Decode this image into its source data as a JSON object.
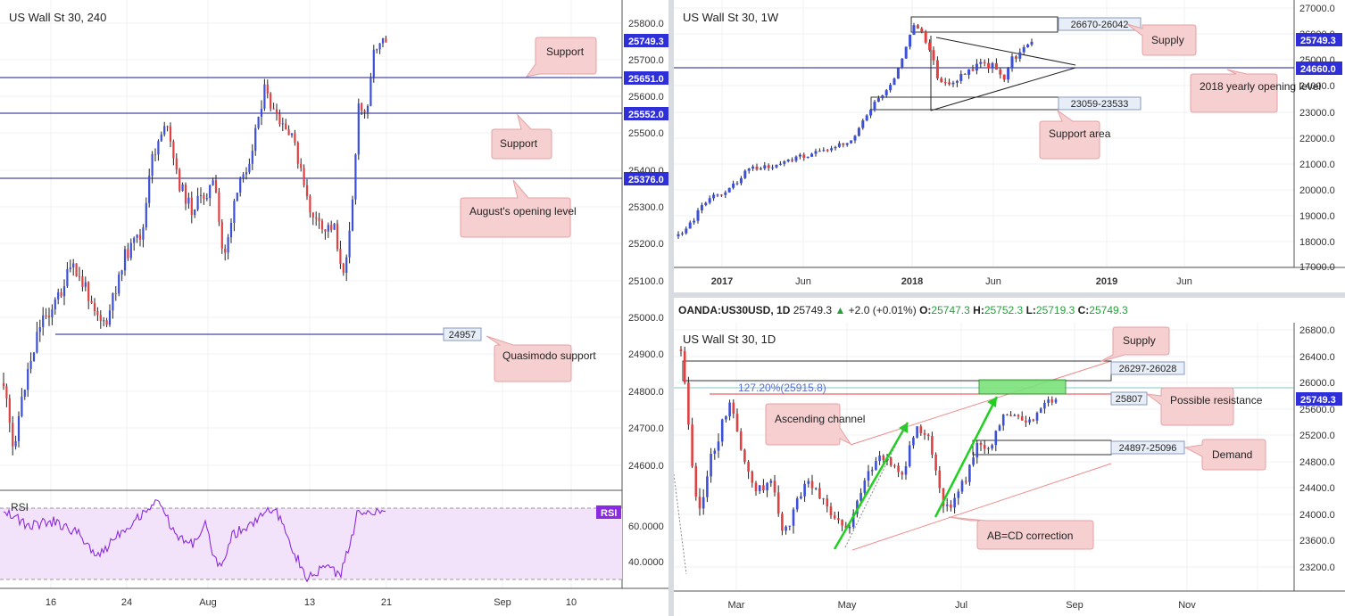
{
  "colors": {
    "up": "#3b4fd8",
    "down": "#e04040",
    "hline": "#1a1a8c",
    "callout_bg": "#f6cfd0",
    "callout_border": "#e5a2a4",
    "rsi_fill": "#f3e3fa",
    "rsi_line": "#8a2be2",
    "priceTag": "#2f2fd9",
    "green_zone": "#7be27b"
  },
  "ohlc": {
    "symbol": "OANDA:US30USD, 1D",
    "close": "25749.3",
    "arrow": "▲",
    "change": "+2.0 (+0.01%)",
    "o_label": "O:",
    "o": "25747.3",
    "h_label": "H:",
    "h": "25752.3",
    "l_label": "L:",
    "l": "25719.3",
    "c_label": "C:",
    "c": "25749.3"
  },
  "chart_data": [
    {
      "type": "candlestick",
      "title": "US Wall St 30, 240",
      "yticks": [
        "25800.0",
        "25700.0",
        "25600.0",
        "25500.0",
        "25400.0",
        "25300.0",
        "25200.0",
        "25100.0",
        "25000.0",
        "24900.0",
        "24800.0",
        "24700.0",
        "24600.0"
      ],
      "ylim": [
        24550,
        25850
      ],
      "xticks": [
        "16",
        "24",
        "Aug",
        "13",
        "21",
        "Sep",
        "10"
      ],
      "price_tag": "25749.3",
      "levels": [
        {
          "value": 25651.0,
          "label": "25651.0",
          "callout": "Support"
        },
        {
          "value": 25552.0,
          "label": "25552.0",
          "callout": "Support"
        },
        {
          "value": 25376.0,
          "label": "25376.0",
          "callout": "August's opening level"
        },
        {
          "value": 24957,
          "label": "24957",
          "callout": "Quasimodo support"
        }
      ],
      "indicator": {
        "name": "RSI",
        "badge": "RSI",
        "yticks": [
          "60.0000",
          "40.0000"
        ],
        "bands": [
          70,
          30
        ]
      }
    },
    {
      "type": "candlestick",
      "title": "US Wall St 30, 1W",
      "yticks": [
        "27000.0",
        "26000.0",
        "25000.0",
        "24000.0",
        "23000.0",
        "22000.0",
        "21000.0",
        "20000.0",
        "19000.0",
        "18000.0",
        "17000.0"
      ],
      "ylim": [
        16900,
        27100
      ],
      "xticks": [
        "2017",
        "Jun",
        "2018",
        "Jun",
        "2019",
        "Jun"
      ],
      "price_tag": "25749.3",
      "levels": [
        {
          "value": 24660.0,
          "label": "24660.0",
          "callout": "2018 yearly opening level"
        }
      ],
      "zones": [
        {
          "range": "26670-26042",
          "callout": "Supply"
        },
        {
          "range": "23059-23533",
          "callout": "Support area"
        }
      ]
    },
    {
      "type": "candlestick",
      "title": "US Wall St 30, 1D",
      "yticks": [
        "26800.0",
        "26400.0",
        "26000.0",
        "25600.0",
        "25200.0",
        "24800.0",
        "24400.0",
        "24000.0",
        "23600.0",
        "23200.0"
      ],
      "ylim": [
        22900,
        26900
      ],
      "xticks": [
        "Mar",
        "May",
        "Jul",
        "Sep",
        "Nov"
      ],
      "price_tag": "25749.3",
      "fib_label": "127.20%(25915.8)",
      "levels": [
        {
          "value": 25807,
          "label": "25807",
          "callout": "Possible resistance"
        }
      ],
      "zones": [
        {
          "range": "26297-26028",
          "callout": "Supply"
        },
        {
          "range": "24897-25096",
          "callout": "Demand"
        }
      ],
      "annotations": [
        "Ascending channel",
        "AB=CD correction"
      ]
    }
  ]
}
